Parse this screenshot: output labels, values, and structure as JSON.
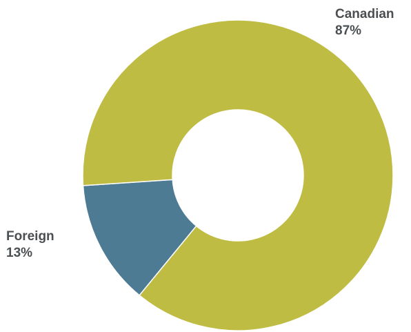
{
  "chart_data": {
    "type": "pie",
    "variant": "donut",
    "title": "",
    "slices": [
      {
        "label": "Canadian",
        "value": 87,
        "value_label": "87%",
        "color": "#bfbc43"
      },
      {
        "label": "Foreign",
        "value": 13,
        "value_label": "13%",
        "color": "#4e7b94"
      }
    ],
    "legend": "none"
  }
}
